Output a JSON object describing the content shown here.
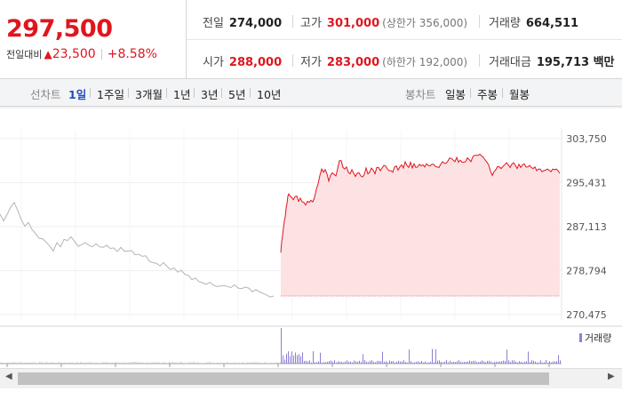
{
  "quote": {
    "price": "297,500",
    "change_label": "전일대비",
    "change_arrow": "▲",
    "change_amount": "23,500",
    "change_pct": "+8.58%"
  },
  "stats": {
    "prev_close": {
      "label": "전일",
      "value": "274,000"
    },
    "high": {
      "label": "고가",
      "value": "301,000",
      "limit_label": "(상한가 356,000)"
    },
    "volume": {
      "label": "거래량",
      "value": "664,511"
    },
    "open": {
      "label": "시가",
      "value": "288,000"
    },
    "low": {
      "label": "저가",
      "value": "283,000",
      "limit_label": "(하한가 192,000)"
    },
    "trade_value": {
      "label": "거래대금",
      "value": "195,713 백만"
    }
  },
  "period_tabs": {
    "label": "선차트",
    "items": [
      "1일",
      "1주일",
      "3개월",
      "1년",
      "3년",
      "5년",
      "10년"
    ],
    "active": "1일"
  },
  "candle_tabs": {
    "label": "봉차트",
    "items": [
      "일봉",
      "주봉",
      "월봉"
    ]
  },
  "colors": {
    "up": "#e0161e",
    "prev_day": "#b4b4b4",
    "fill": "#fde2e4",
    "volume": "#8d7fd6",
    "active_tab": "#1d4fc4"
  },
  "chart_data": {
    "type": "area",
    "y_ticks": [
      "303,750",
      "295,431",
      "287,113",
      "278,794",
      "270,475"
    ],
    "ylim": [
      270475,
      303750
    ],
    "reference_line": 274000,
    "previous_day_series": [
      [
        0,
        289500
      ],
      [
        4,
        288200
      ],
      [
        8,
        289400
      ],
      [
        12,
        290800
      ],
      [
        16,
        291700
      ],
      [
        20,
        290100
      ],
      [
        24,
        288400
      ],
      [
        28,
        287200
      ],
      [
        32,
        287900
      ],
      [
        36,
        286600
      ],
      [
        40,
        285800
      ],
      [
        44,
        284900
      ],
      [
        48,
        284800
      ],
      [
        52,
        284200
      ],
      [
        56,
        283400
      ],
      [
        60,
        282500
      ],
      [
        64,
        284100
      ],
      [
        68,
        283300
      ],
      [
        72,
        284700
      ],
      [
        76,
        284500
      ],
      [
        80,
        285200
      ],
      [
        84,
        284300
      ],
      [
        88,
        283400
      ],
      [
        92,
        283700
      ],
      [
        96,
        284100
      ],
      [
        100,
        283600
      ],
      [
        104,
        283300
      ],
      [
        108,
        283900
      ],
      [
        112,
        283300
      ],
      [
        116,
        283200
      ],
      [
        120,
        283600
      ],
      [
        124,
        283000
      ],
      [
        128,
        283100
      ],
      [
        132,
        282400
      ],
      [
        136,
        283200
      ],
      [
        140,
        282500
      ],
      [
        144,
        282500
      ],
      [
        148,
        282600
      ],
      [
        152,
        281800
      ],
      [
        156,
        281900
      ],
      [
        160,
        281500
      ],
      [
        164,
        281600
      ],
      [
        168,
        280600
      ],
      [
        172,
        280300
      ],
      [
        176,
        280200
      ],
      [
        180,
        279700
      ],
      [
        184,
        280300
      ],
      [
        188,
        279600
      ],
      [
        192,
        279000
      ],
      [
        196,
        279300
      ],
      [
        200,
        278500
      ],
      [
        204,
        278900
      ],
      [
        208,
        278100
      ],
      [
        212,
        277900
      ],
      [
        216,
        277100
      ],
      [
        220,
        277400
      ],
      [
        224,
        276700
      ],
      [
        228,
        276500
      ],
      [
        232,
        276200
      ],
      [
        236,
        276600
      ],
      [
        240,
        276100
      ],
      [
        244,
        275800
      ],
      [
        248,
        275900
      ],
      [
        252,
        276000
      ],
      [
        256,
        275800
      ],
      [
        260,
        275600
      ],
      [
        264,
        276100
      ],
      [
        268,
        275500
      ],
      [
        272,
        275400
      ],
      [
        276,
        275700
      ],
      [
        280,
        275500
      ],
      [
        284,
        274800
      ],
      [
        288,
        275200
      ],
      [
        292,
        274800
      ],
      [
        296,
        274500
      ],
      [
        300,
        274200
      ],
      [
        304,
        273800
      ],
      [
        308,
        274000
      ]
    ],
    "today_series": [
      [
        0,
        282200
      ],
      [
        1,
        284300
      ],
      [
        2,
        285400
      ],
      [
        3,
        286900
      ],
      [
        4,
        288200
      ],
      [
        5,
        289000
      ],
      [
        6,
        290600
      ],
      [
        7,
        291500
      ],
      [
        8,
        292900
      ],
      [
        9,
        293300
      ],
      [
        10,
        293000
      ],
      [
        12,
        292700
      ],
      [
        14,
        292200
      ],
      [
        16,
        292800
      ],
      [
        18,
        292900
      ],
      [
        20,
        291900
      ],
      [
        22,
        292500
      ],
      [
        24,
        291800
      ],
      [
        26,
        291700
      ],
      [
        28,
        291200
      ],
      [
        30,
        291900
      ],
      [
        32,
        291700
      ],
      [
        34,
        292100
      ],
      [
        36,
        291800
      ],
      [
        38,
        292600
      ],
      [
        40,
        294200
      ],
      [
        42,
        295200
      ],
      [
        44,
        296800
      ],
      [
        46,
        298000
      ],
      [
        48,
        297400
      ],
      [
        50,
        297900
      ],
      [
        52,
        297100
      ],
      [
        54,
        295700
      ],
      [
        56,
        296800
      ],
      [
        58,
        297300
      ],
      [
        60,
        297000
      ],
      [
        62,
        296700
      ],
      [
        64,
        298100
      ],
      [
        66,
        299600
      ],
      [
        68,
        299600
      ],
      [
        70,
        298300
      ],
      [
        72,
        298000
      ],
      [
        74,
        298400
      ],
      [
        76,
        297400
      ],
      [
        78,
        297100
      ],
      [
        80,
        297900
      ],
      [
        82,
        297200
      ],
      [
        84,
        296600
      ],
      [
        86,
        297200
      ],
      [
        88,
        297300
      ],
      [
        90,
        296700
      ],
      [
        92,
        296500
      ],
      [
        94,
        297000
      ],
      [
        96,
        298200
      ],
      [
        98,
        297100
      ],
      [
        100,
        297400
      ],
      [
        102,
        298200
      ],
      [
        104,
        297800
      ],
      [
        106,
        297100
      ],
      [
        108,
        298300
      ],
      [
        110,
        298300
      ],
      [
        112,
        297700
      ],
      [
        114,
        298200
      ],
      [
        116,
        298700
      ],
      [
        118,
        298600
      ],
      [
        120,
        298000
      ],
      [
        122,
        297700
      ],
      [
        124,
        297700
      ],
      [
        126,
        297400
      ],
      [
        128,
        298400
      ],
      [
        130,
        298600
      ],
      [
        132,
        297800
      ],
      [
        134,
        298400
      ],
      [
        136,
        298800
      ],
      [
        138,
        298200
      ],
      [
        140,
        299400
      ],
      [
        142,
        298700
      ],
      [
        144,
        298300
      ],
      [
        146,
        299300
      ],
      [
        148,
        298200
      ],
      [
        150,
        299000
      ],
      [
        152,
        298300
      ],
      [
        154,
        298400
      ],
      [
        156,
        298900
      ],
      [
        158,
        298600
      ],
      [
        160,
        298800
      ],
      [
        162,
        298400
      ],
      [
        164,
        299000
      ],
      [
        166,
        298700
      ],
      [
        168,
        298600
      ],
      [
        170,
        298900
      ],
      [
        172,
        298900
      ],
      [
        174,
        298500
      ],
      [
        176,
        298400
      ],
      [
        178,
        298300
      ],
      [
        180,
        298900
      ],
      [
        182,
        299400
      ],
      [
        184,
        299100
      ],
      [
        186,
        299100
      ],
      [
        188,
        299500
      ],
      [
        190,
        300100
      ],
      [
        192,
        300000
      ],
      [
        194,
        299700
      ],
      [
        196,
        299400
      ],
      [
        198,
        300200
      ],
      [
        200,
        299300
      ],
      [
        202,
        299700
      ],
      [
        204,
        299300
      ],
      [
        206,
        299300
      ],
      [
        208,
        299400
      ],
      [
        210,
        300100
      ],
      [
        212,
        299800
      ],
      [
        214,
        299400
      ],
      [
        216,
        300300
      ],
      [
        218,
        300600
      ],
      [
        220,
        300600
      ],
      [
        222,
        300600
      ],
      [
        224,
        300800
      ],
      [
        226,
        300500
      ],
      [
        228,
        300200
      ],
      [
        230,
        299700
      ],
      [
        232,
        299300
      ],
      [
        234,
        298800
      ],
      [
        236,
        297600
      ],
      [
        238,
        296800
      ],
      [
        240,
        297500
      ],
      [
        242,
        297900
      ],
      [
        244,
        298500
      ],
      [
        246,
        298400
      ],
      [
        248,
        298100
      ],
      [
        250,
        298500
      ],
      [
        252,
        298800
      ],
      [
        254,
        299200
      ],
      [
        256,
        298800
      ],
      [
        258,
        298300
      ],
      [
        260,
        298900
      ],
      [
        262,
        299200
      ],
      [
        264,
        298700
      ],
      [
        266,
        298100
      ],
      [
        268,
        298900
      ],
      [
        270,
        298300
      ],
      [
        272,
        298800
      ],
      [
        274,
        299000
      ],
      [
        276,
        298400
      ],
      [
        278,
        298400
      ],
      [
        280,
        298700
      ],
      [
        282,
        298300
      ],
      [
        284,
        298100
      ],
      [
        286,
        298400
      ],
      [
        288,
        297700
      ],
      [
        290,
        298000
      ],
      [
        292,
        298000
      ],
      [
        294,
        297500
      ],
      [
        296,
        297700
      ],
      [
        298,
        297800
      ],
      [
        300,
        298000
      ],
      [
        302,
        297800
      ],
      [
        304,
        297500
      ],
      [
        306,
        298000
      ],
      [
        308,
        297900
      ],
      [
        310,
        298000
      ],
      [
        312,
        297700
      ],
      [
        314,
        297200
      ]
    ],
    "volume_legend": "거래량"
  }
}
